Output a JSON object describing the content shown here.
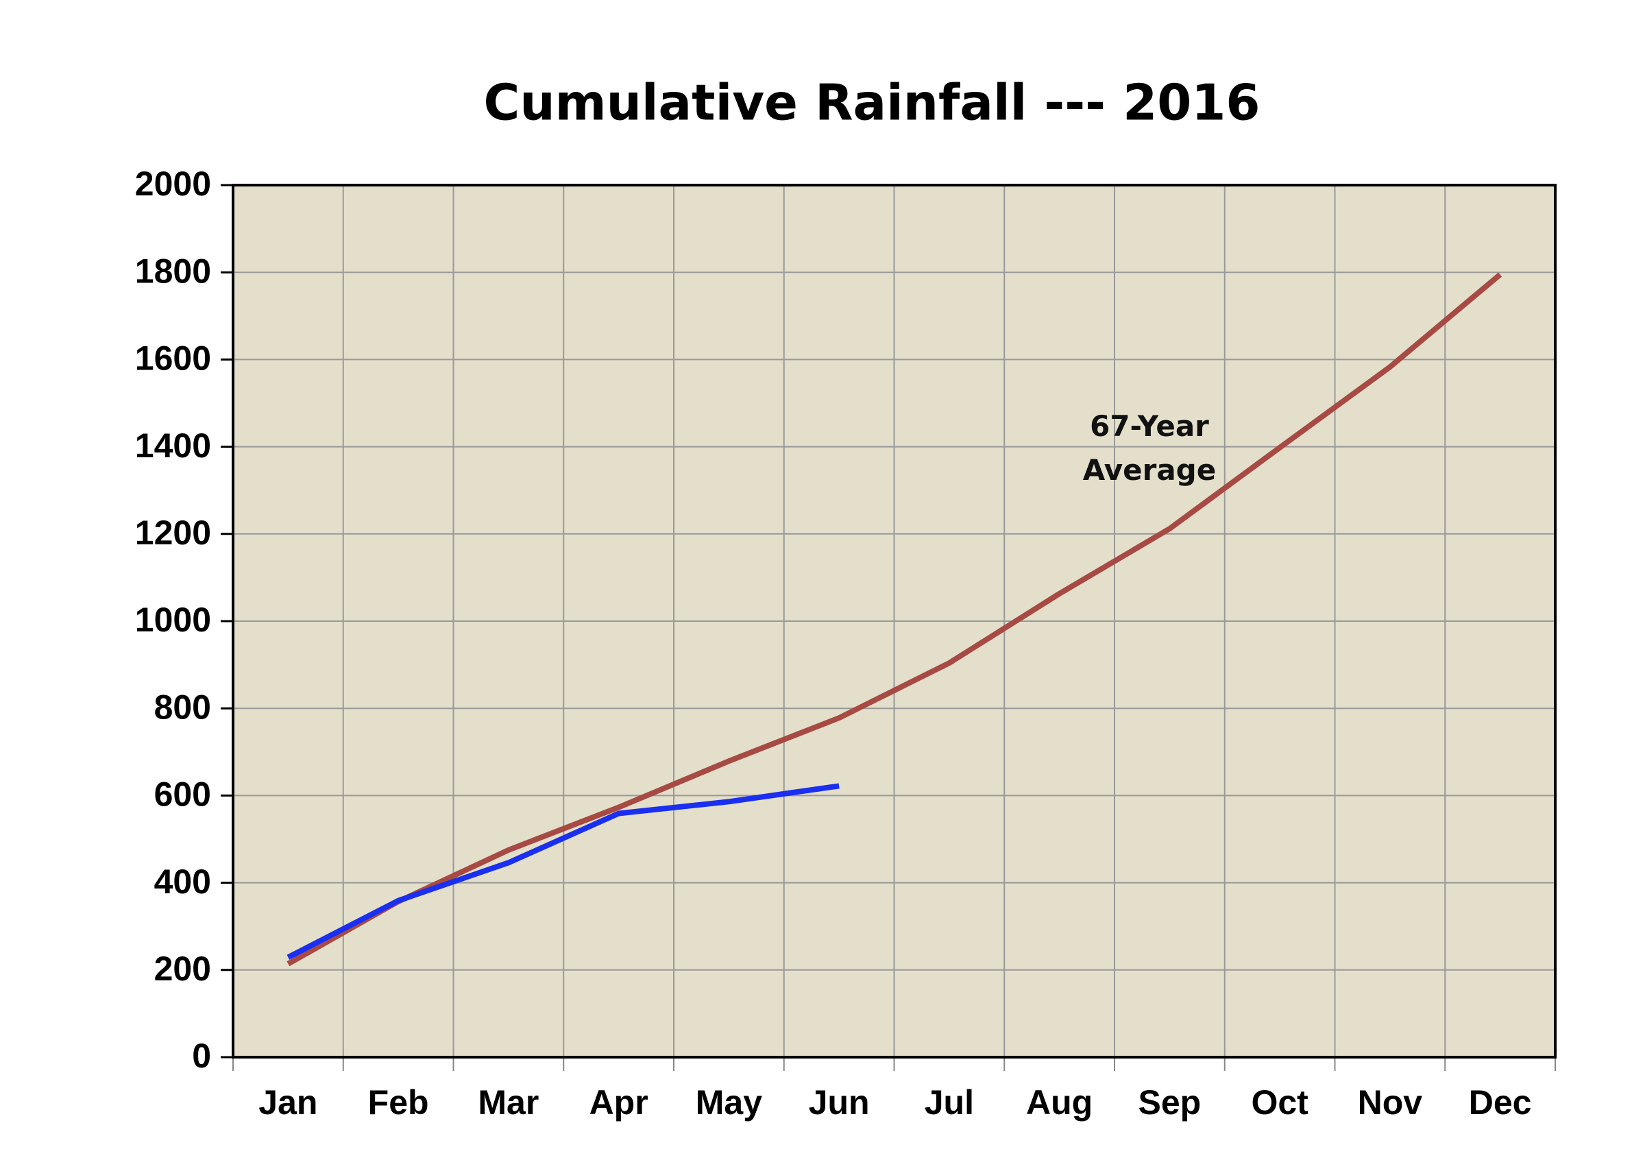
{
  "chart_data": {
    "type": "line",
    "title": "Cumulative Rainfall --- 2016",
    "categories": [
      "Jan",
      "Feb",
      "Mar",
      "Apr",
      "May",
      "Jun",
      "Jul",
      "Aug",
      "Sep",
      "Oct",
      "Nov",
      "Dec"
    ],
    "series": [
      {
        "name": "67-Year Average",
        "color": "#a84a44",
        "values": [
          214,
          357,
          475,
          573,
          679,
          778,
          904,
          1063,
          1212,
          1398,
          1583,
          1795
        ]
      },
      {
        "color": "#1a2ff0",
        "values": [
          229,
          359,
          446,
          559,
          586,
          622,
          null,
          null,
          null,
          null,
          null,
          null
        ]
      }
    ],
    "ylim": [
      0,
      2000
    ],
    "yticks": [
      0,
      200,
      400,
      600,
      800,
      1000,
      1200,
      1400,
      1600,
      1800,
      2000
    ],
    "grid": true
  }
}
